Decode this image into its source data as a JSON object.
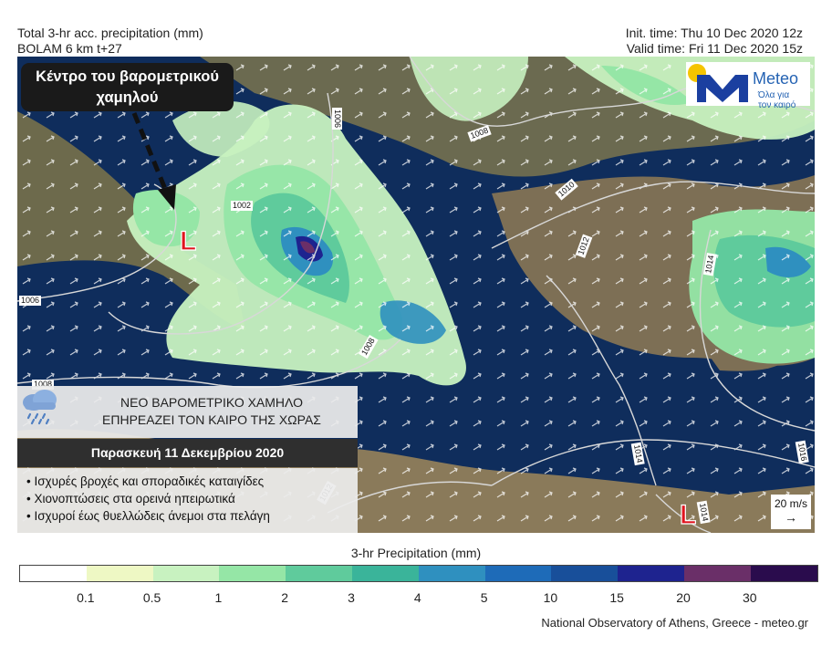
{
  "header": {
    "title_line1": "Total 3-hr acc. precipitation (mm)",
    "title_line2": "BOLAM 6 km t+27",
    "init_time": "Init. time: Thu 10 Dec 2020 12z",
    "valid_time": "Valid time: Fri 11 Dec 2020 15z"
  },
  "map": {
    "callout_line1": "Κέντρο του βαρομετρικού",
    "callout_line2": "χαμηλού",
    "low_symbol": "L",
    "isobars": [
      "1002",
      "1006",
      "1006",
      "1008",
      "1008",
      "1008",
      "1010",
      "1012",
      "1012",
      "1014",
      "1014",
      "1016",
      "1014"
    ]
  },
  "logo": {
    "brand": "Meteo",
    "tagline_line1": "Όλα για",
    "tagline_line2": "τον καιρό",
    "colors": {
      "blue": "#1b3fa0",
      "sun": "#f5c400"
    }
  },
  "info": {
    "icon": "rain-cloud-icon",
    "title_line1": "ΝΕΟ ΒΑΡΟΜΕΤΡΙΚΟ ΧΑΜΗΛΟ",
    "title_line2": "ΕΠΗΡΕΑΖΕΙ ΤΟΝ ΚΑΙΡΟ ΤΗΣ ΧΩΡΑΣ",
    "date": "Παρασκευή 11 Δεκεμβρίου 2020",
    "bullets": [
      "• Ισχυρές βροχές και σποραδικές καταιγίδες",
      "• Χιονοπτώσεις στα ορεινά ηπειρωτικά",
      "• Ισχυροί έως θυελλώδεις άνεμοι στα πελάγη"
    ]
  },
  "wind_key": {
    "label": "20 m/s",
    "arrow": "→"
  },
  "legend": {
    "title": "3-hr Precipitation (mm)",
    "ticks": [
      "0.1",
      "0.5",
      "1",
      "2",
      "3",
      "4",
      "5",
      "10",
      "15",
      "20",
      "30"
    ],
    "colors": [
      "#ffffff",
      "#eef8c4",
      "#c8f2c0",
      "#95e6a6",
      "#5fcb9c",
      "#3ab49a",
      "#2f90bf",
      "#1e6bb8",
      "#184f9a",
      "#1e238f",
      "#6a2f68",
      "#2a0c4d"
    ]
  },
  "credit": "National Observatory of Athens, Greece - meteo.gr"
}
